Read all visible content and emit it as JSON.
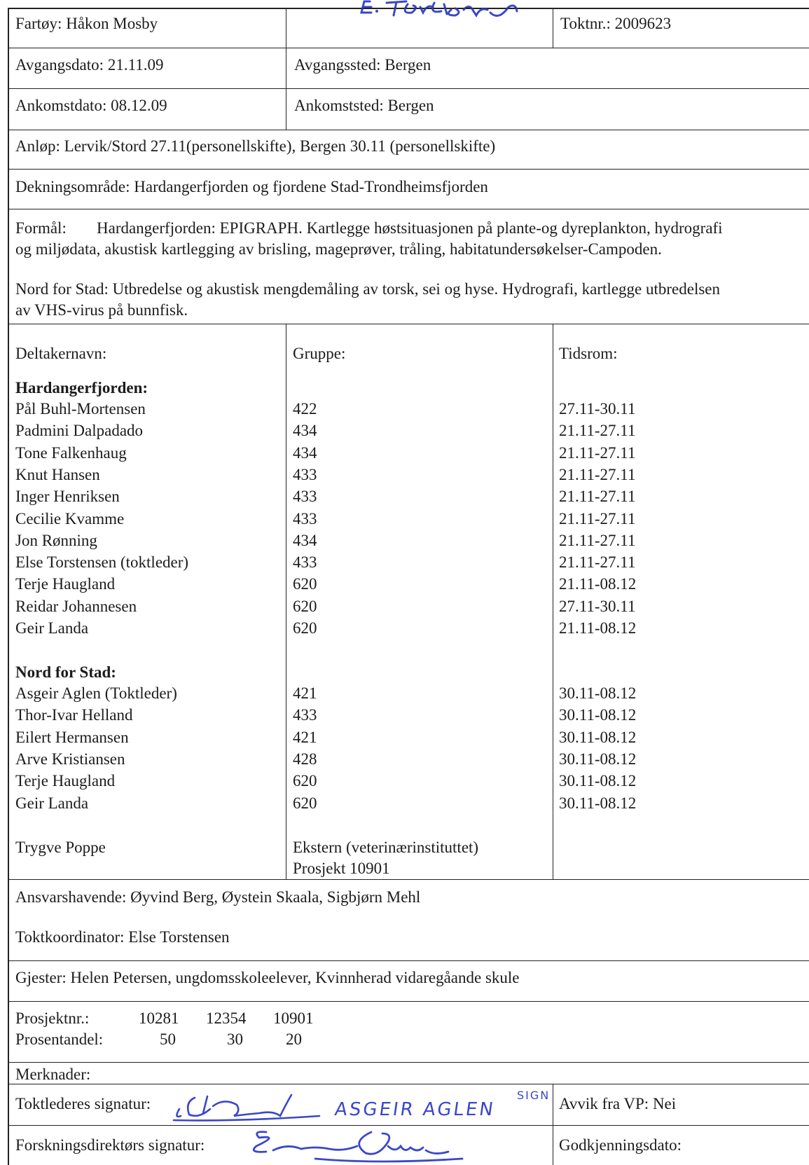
{
  "header_signature": "E. Torstensen",
  "vessel": {
    "label": "Fartøy:",
    "value": "Håkon Mosby"
  },
  "cruise_no": {
    "label": "Toktnr.:",
    "value": "2009623"
  },
  "departure_date": {
    "label": "Avgangsdato:",
    "value": "21.11.09"
  },
  "departure_place": {
    "label": "Avgangssted:",
    "value": "Bergen"
  },
  "arrival_date": {
    "label": "Ankomstdato:",
    "value": "08.12.09"
  },
  "arrival_place": {
    "label": "Ankomststed:",
    "value": "Bergen"
  },
  "port_calls": "Anløp: Lervik/Stord 27.11(personellskifte), Bergen 30.11 (personellskifte)",
  "coverage": "Dekningsområde: Hardangerfjorden og fjordene Stad-Trondheimsfjorden",
  "purpose": {
    "label": "Formål:",
    "line1": "Hardangerfjorden: EPIGRAPH. Kartlegge høstsituasjonen på plante-og dyreplankton, hydrografi",
    "line2": "og miljødata, akustisk kartlegging av brisling, mageprøver, tråling, habitatundersøkelser-Campoden.",
    "line3": "Nord for Stad: Utbredelse og akustisk mengdemåling av torsk, sei og hyse. Hydrografi, kartlegge utbredelsen",
    "line4": "av VHS-virus på bunnfisk."
  },
  "participants_header": {
    "name": "Deltakernavn:",
    "group": "Gruppe:",
    "period": "Tidsrom:"
  },
  "sections": [
    {
      "title": "Hardangerfjorden:",
      "rows": [
        {
          "name": "Pål Buhl-Mortensen",
          "group": "422",
          "period": "27.11-30.11"
        },
        {
          "name": "Padmini Dalpadado",
          "group": "434",
          "period": "21.11-27.11"
        },
        {
          "name": "Tone Falkenhaug",
          "group": "434",
          "period": "21.11-27.11"
        },
        {
          "name": "Knut Hansen",
          "group": "433",
          "period": "21.11-27.11"
        },
        {
          "name": "Inger Henriksen",
          "group": "433",
          "period": "21.11-27.11"
        },
        {
          "name": "Cecilie Kvamme",
          "group": "433",
          "period": "21.11-27.11"
        },
        {
          "name": "Jon Rønning",
          "group": "434",
          "period": "21.11-27.11"
        },
        {
          "name": "Else Torstensen (toktleder)",
          "group": "433",
          "period": "21.11-27.11"
        },
        {
          "name": "Terje Haugland",
          "group": "620",
          "period": "21.11-08.12"
        },
        {
          "name": "Reidar Johannesen",
          "group": "620",
          "period": "27.11-30.11"
        },
        {
          "name": "Geir Landa",
          "group": "620",
          "period": "21.11-08.12"
        }
      ]
    },
    {
      "title": "Nord for Stad:",
      "rows": [
        {
          "name": "Asgeir Aglen (Toktleder)",
          "group": "421",
          "period": "30.11-08.12"
        },
        {
          "name": "Thor-Ivar Helland",
          "group": "433",
          "period": "30.11-08.12"
        },
        {
          "name": "Eilert Hermansen",
          "group": "421",
          "period": "30.11-08.12"
        },
        {
          "name": "Arve Kristiansen",
          "group": "428",
          "period": "30.11-08.12"
        },
        {
          "name": "Terje Haugland",
          "group": "620",
          "period": "30.11-08.12"
        },
        {
          "name": "Geir Landa",
          "group": "620",
          "period": "30.11-08.12"
        }
      ]
    }
  ],
  "external": {
    "name": "Trygve Poppe",
    "group_line1": "Ekstern (veterinærinstituttet)",
    "group_line2": "Prosjekt 10901"
  },
  "responsible": "Ansvarshavende: Øyvind Berg, Øystein Skaala, Sigbjørn Mehl",
  "coordinator": "Toktkoordinator: Else Torstensen",
  "guests": "Gjester: Helen Petersen, ungdomsskoleelever, Kvinnherad vidaregåande skule",
  "projects": {
    "label_no": "Prosjektnr.:",
    "label_pct": "Prosentandel:",
    "numbers": [
      "10281",
      "12354",
      "10901"
    ],
    "percents": [
      "50",
      "30",
      "20"
    ]
  },
  "remarks_label": "Merknader:",
  "leader_signature_label": "Toktlederes signatur:",
  "leader_signature_print": "ASGEIR AGLEN",
  "leader_signature_sign": "SIGN",
  "deviation": "Avvik fra VP: Nei",
  "director_signature_label": "Forskningsdirektørs signatur:",
  "approval_date_label": "Godkjenningsdato:",
  "colors": {
    "ink": "#1c1c1c",
    "pen": "#3a48c8"
  }
}
